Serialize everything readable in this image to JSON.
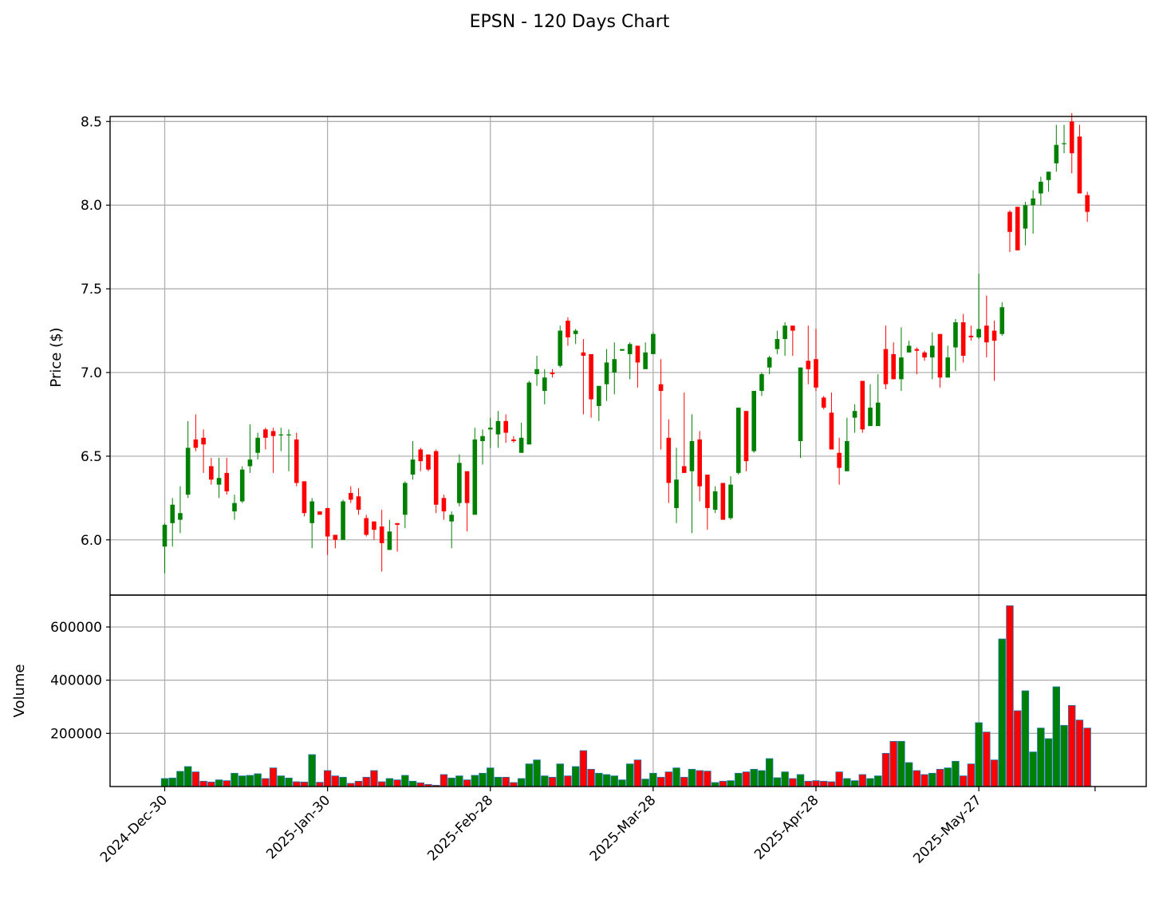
{
  "chart_data": {
    "type": "candlestick",
    "title": "EPSN - 120 Days Chart",
    "price_panel": {
      "ylabel": "Price ($)",
      "ylim": [
        5.67,
        8.53
      ],
      "yticks": [
        6.0,
        6.5,
        7.0,
        7.5,
        8.0,
        8.5
      ],
      "ytick_labels": [
        "6.0",
        "6.5",
        "7.0",
        "7.5",
        "8.0",
        "8.5"
      ],
      "grid": true
    },
    "volume_panel": {
      "ylabel": "Volume",
      "ylim": [
        0,
        720000
      ],
      "yticks": [
        200000,
        400000,
        600000
      ],
      "ytick_labels": [
        "200000",
        "400000",
        "600000"
      ],
      "grid": true
    },
    "x_ticks": [
      {
        "index": 0,
        "label": "2024-Dec-30"
      },
      {
        "index": 21,
        "label": "2025-Jan-30"
      },
      {
        "index": 42,
        "label": "2025-Feb-28"
      },
      {
        "index": 63,
        "label": "2025-Mar-28"
      },
      {
        "index": 84,
        "label": "2025-Apr-28"
      },
      {
        "index": 105,
        "label": "2025-May-27"
      }
    ],
    "colors": {
      "up": "#008000",
      "down": "#ff0000",
      "volume_edge": "#1f77b4"
    },
    "candles": [
      [
        5.96,
        6.1,
        5.8,
        6.09,
        30000
      ],
      [
        6.1,
        6.25,
        5.96,
        6.21,
        32000
      ],
      [
        6.12,
        6.32,
        6.04,
        6.16,
        57000
      ],
      [
        6.27,
        6.71,
        6.25,
        6.55,
        75000
      ],
      [
        6.6,
        6.75,
        6.53,
        6.55,
        55000
      ],
      [
        6.61,
        6.66,
        6.4,
        6.57,
        20000
      ],
      [
        6.44,
        6.49,
        6.33,
        6.36,
        17000
      ],
      [
        6.33,
        6.49,
        6.25,
        6.37,
        25000
      ],
      [
        6.4,
        6.49,
        6.27,
        6.29,
        22000
      ],
      [
        6.17,
        6.27,
        6.12,
        6.22,
        50000
      ],
      [
        6.23,
        6.44,
        6.22,
        6.42,
        40000
      ],
      [
        6.44,
        6.69,
        6.4,
        6.48,
        42000
      ],
      [
        6.52,
        6.64,
        6.48,
        6.61,
        48000
      ],
      [
        6.66,
        6.67,
        6.54,
        6.61,
        30000
      ],
      [
        6.65,
        6.67,
        6.4,
        6.62,
        70000
      ],
      [
        6.63,
        6.67,
        6.53,
        6.63,
        40000
      ],
      [
        6.63,
        6.66,
        6.41,
        6.63,
        32000
      ],
      [
        6.6,
        6.64,
        6.32,
        6.34,
        18000
      ],
      [
        6.35,
        6.35,
        6.14,
        6.16,
        17000
      ],
      [
        6.1,
        6.25,
        5.95,
        6.23,
        120000
      ],
      [
        6.17,
        6.17,
        6.17,
        6.15,
        16000
      ],
      [
        6.19,
        6.19,
        5.91,
        6.02,
        60000
      ],
      [
        6.03,
        6.03,
        5.95,
        6.0,
        40000
      ],
      [
        6.0,
        6.24,
        6.0,
        6.23,
        35000
      ],
      [
        6.28,
        6.32,
        6.22,
        6.24,
        12000
      ],
      [
        6.26,
        6.31,
        6.15,
        6.18,
        20000
      ],
      [
        6.13,
        6.15,
        6.02,
        6.03,
        35000
      ],
      [
        6.11,
        6.11,
        6.0,
        6.06,
        60000
      ],
      [
        6.08,
        6.18,
        5.81,
        5.98,
        18000
      ],
      [
        5.94,
        6.12,
        5.94,
        6.05,
        30000
      ],
      [
        6.1,
        6.1,
        5.93,
        6.09,
        25000
      ],
      [
        6.15,
        6.35,
        6.07,
        6.34,
        42000
      ],
      [
        6.39,
        6.59,
        6.36,
        6.48,
        20000
      ],
      [
        6.54,
        6.55,
        6.41,
        6.47,
        14000
      ],
      [
        6.51,
        6.51,
        6.41,
        6.42,
        8000
      ],
      [
        6.53,
        6.54,
        6.16,
        6.21,
        5000
      ],
      [
        6.25,
        6.27,
        6.12,
        6.17,
        45000
      ],
      [
        6.11,
        6.17,
        5.95,
        6.15,
        32000
      ],
      [
        6.22,
        6.51,
        6.2,
        6.46,
        40000
      ],
      [
        6.41,
        6.41,
        6.05,
        6.22,
        25000
      ],
      [
        6.15,
        6.67,
        6.15,
        6.6,
        42000
      ],
      [
        6.59,
        6.66,
        6.45,
        6.62,
        50000
      ],
      [
        6.66,
        6.73,
        6.55,
        6.67,
        70000
      ],
      [
        6.63,
        6.77,
        6.55,
        6.71,
        35000
      ],
      [
        6.71,
        6.75,
        6.58,
        6.64,
        35000
      ],
      [
        6.6,
        6.62,
        6.58,
        6.59,
        15000
      ],
      [
        6.52,
        6.7,
        6.52,
        6.61,
        30000
      ],
      [
        6.57,
        6.95,
        6.57,
        6.94,
        85000
      ],
      [
        6.99,
        7.1,
        6.92,
        7.02,
        100000
      ],
      [
        6.89,
        7.02,
        6.81,
        6.97,
        40000
      ],
      [
        7.0,
        7.02,
        6.97,
        6.99,
        35000
      ],
      [
        7.04,
        7.28,
        7.03,
        7.25,
        85000
      ],
      [
        7.31,
        7.33,
        7.16,
        7.21,
        40000
      ],
      [
        7.23,
        7.26,
        7.17,
        7.25,
        75000
      ],
      [
        7.12,
        7.2,
        6.75,
        7.1,
        135000
      ],
      [
        7.11,
        7.11,
        6.73,
        6.84,
        65000
      ],
      [
        6.8,
        6.91,
        6.71,
        6.92,
        50000
      ],
      [
        6.93,
        7.14,
        6.83,
        7.06,
        45000
      ],
      [
        7.0,
        7.18,
        6.87,
        7.08,
        40000
      ],
      [
        7.13,
        7.14,
        7.13,
        7.14,
        25000
      ],
      [
        7.11,
        7.18,
        6.96,
        7.17,
        85000
      ],
      [
        7.16,
        7.16,
        6.91,
        7.06,
        100000
      ],
      [
        7.02,
        7.18,
        7.02,
        7.12,
        28000
      ],
      [
        7.11,
        7.24,
        7.11,
        7.23,
        50000
      ],
      [
        6.93,
        7.08,
        6.54,
        6.89,
        35000
      ],
      [
        6.61,
        6.72,
        6.22,
        6.34,
        55000
      ],
      [
        6.19,
        6.55,
        6.1,
        6.36,
        70000
      ],
      [
        6.44,
        6.88,
        6.4,
        6.4,
        35000
      ],
      [
        6.41,
        6.75,
        6.04,
        6.59,
        65000
      ],
      [
        6.6,
        6.65,
        6.23,
        6.32,
        60000
      ],
      [
        6.39,
        6.39,
        6.06,
        6.19,
        58000
      ],
      [
        6.18,
        6.32,
        6.16,
        6.29,
        15000
      ],
      [
        6.34,
        6.34,
        6.12,
        6.12,
        20000
      ],
      [
        6.13,
        6.38,
        6.12,
        6.33,
        22000
      ],
      [
        6.4,
        6.79,
        6.39,
        6.79,
        50000
      ],
      [
        6.77,
        6.77,
        6.41,
        6.47,
        55000
      ],
      [
        6.53,
        6.89,
        6.52,
        6.89,
        65000
      ],
      [
        6.89,
        7.0,
        6.86,
        6.99,
        60000
      ],
      [
        7.03,
        7.1,
        6.99,
        7.09,
        105000
      ],
      [
        7.14,
        7.25,
        7.11,
        7.2,
        33000
      ],
      [
        7.2,
        7.3,
        7.1,
        7.28,
        55000
      ],
      [
        7.28,
        7.28,
        7.1,
        7.25,
        30000
      ],
      [
        6.59,
        7.03,
        6.49,
        7.03,
        45000
      ],
      [
        7.07,
        7.28,
        6.93,
        7.02,
        20000
      ],
      [
        7.08,
        7.26,
        6.89,
        6.91,
        22000
      ],
      [
        6.85,
        6.86,
        6.78,
        6.79,
        20000
      ],
      [
        6.76,
        6.88,
        6.54,
        6.54,
        18000
      ],
      [
        6.52,
        6.61,
        6.33,
        6.43,
        55000
      ],
      [
        6.41,
        6.73,
        6.41,
        6.59,
        30000
      ],
      [
        6.73,
        6.81,
        6.64,
        6.77,
        22000
      ],
      [
        6.95,
        6.95,
        6.64,
        6.66,
        45000
      ],
      [
        6.68,
        6.93,
        6.68,
        6.79,
        30000
      ],
      [
        6.68,
        6.99,
        6.68,
        6.82,
        40000
      ],
      [
        7.14,
        7.28,
        6.9,
        6.93,
        125000
      ],
      [
        7.11,
        7.18,
        6.96,
        6.96,
        170000
      ],
      [
        6.96,
        7.27,
        6.89,
        7.09,
        170000
      ],
      [
        7.12,
        7.19,
        7.12,
        7.16,
        90000
      ],
      [
        7.14,
        7.15,
        6.99,
        7.13,
        60000
      ],
      [
        7.12,
        7.13,
        7.07,
        7.09,
        45000
      ],
      [
        7.09,
        7.24,
        6.96,
        7.16,
        50000
      ],
      [
        7.23,
        7.23,
        6.91,
        6.97,
        65000
      ],
      [
        6.97,
        7.16,
        6.97,
        7.09,
        70000
      ],
      [
        7.15,
        7.32,
        7.01,
        7.3,
        95000
      ],
      [
        7.3,
        7.35,
        7.06,
        7.1,
        40000
      ],
      [
        7.22,
        7.28,
        7.19,
        7.21,
        85000
      ],
      [
        7.21,
        7.59,
        7.2,
        7.26,
        240000
      ],
      [
        7.28,
        7.46,
        7.09,
        7.18,
        205000
      ],
      [
        7.25,
        7.31,
        6.95,
        7.19,
        100000
      ],
      [
        7.23,
        7.42,
        7.22,
        7.39,
        555000
      ],
      [
        7.96,
        7.97,
        7.72,
        7.84,
        680000
      ],
      [
        7.99,
        7.99,
        7.74,
        7.73,
        285000
      ],
      [
        7.86,
        8.02,
        7.76,
        8.0,
        360000
      ],
      [
        8.0,
        8.09,
        7.83,
        8.04,
        130000
      ],
      [
        8.07,
        8.17,
        8.0,
        8.14,
        220000
      ],
      [
        8.15,
        8.2,
        8.08,
        8.2,
        180000
      ],
      [
        8.25,
        8.48,
        8.2,
        8.36,
        375000
      ],
      [
        8.37,
        8.48,
        8.31,
        8.37,
        230000
      ],
      [
        8.5,
        8.55,
        8.19,
        8.31,
        305000
      ],
      [
        8.41,
        8.48,
        8.07,
        8.07,
        250000
      ],
      [
        8.06,
        8.08,
        7.9,
        7.96,
        220000
      ]
    ]
  }
}
